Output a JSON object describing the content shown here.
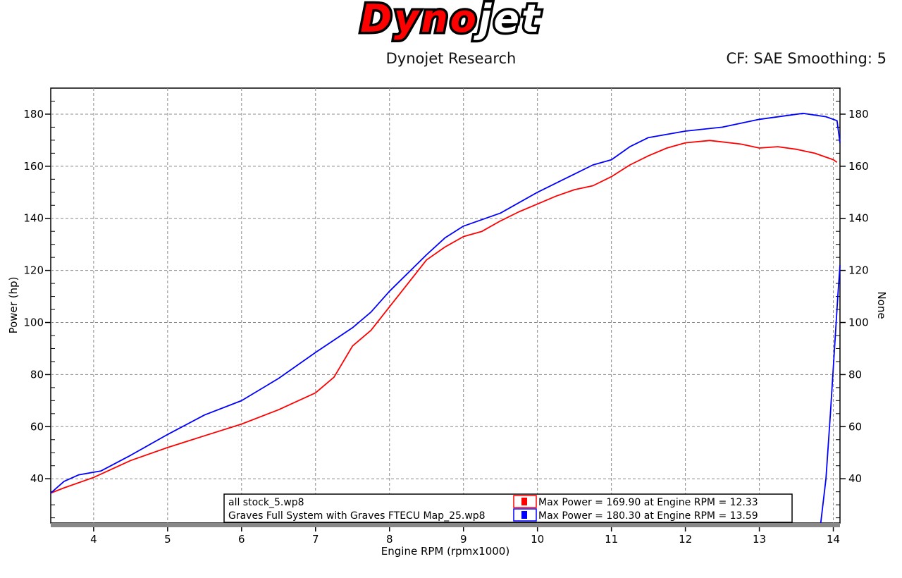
{
  "header": {
    "logo_text": "Dynojet",
    "title": "Dynojet Research",
    "correction": "CF: SAE Smoothing: 5"
  },
  "chart_data": {
    "type": "line",
    "xlabel": "Engine RPM (rpmx1000)",
    "ylabel": "Power (hp)",
    "y2label": "None",
    "xlim": [
      3.42,
      14.09
    ],
    "ylim": [
      23,
      190
    ],
    "xticks": [
      4,
      5,
      6,
      7,
      8,
      9,
      10,
      11,
      12,
      13,
      14
    ],
    "yticks": [
      40,
      60,
      80,
      100,
      120,
      140,
      160,
      180
    ],
    "grid": true,
    "legend_placement": "bottom",
    "series": [
      {
        "name": "all stock_5.wp8",
        "color": "#ff0000",
        "legend_text": "Max Power = 169.90 at Engine RPM = 12.33",
        "x": [
          3.42,
          3.6,
          4.0,
          4.5,
          5.0,
          5.5,
          6.0,
          6.5,
          7.0,
          7.25,
          7.5,
          7.75,
          8.0,
          8.25,
          8.5,
          8.75,
          9.0,
          9.25,
          9.5,
          9.75,
          10.0,
          10.25,
          10.5,
          10.75,
          11.0,
          11.25,
          11.5,
          11.75,
          12.0,
          12.33,
          12.75,
          13.0,
          13.25,
          13.5,
          13.75,
          14.0,
          14.05
        ],
        "y": [
          34.5,
          36.5,
          40.5,
          47,
          52,
          56.5,
          61,
          66.5,
          73,
          79,
          91,
          97,
          106,
          115,
          124,
          129,
          133,
          135,
          139,
          142.5,
          145.5,
          148.5,
          151,
          152.5,
          156,
          160.5,
          164,
          167,
          169,
          169.9,
          168.5,
          167,
          167.5,
          166.5,
          165,
          162.5,
          161.5
        ]
      },
      {
        "name": "Graves Full System with Graves FTECU Map_25.wp8",
        "color": "#0000ff",
        "legend_text": "Max Power = 180.30 at Engine RPM = 13.59",
        "x": [
          3.42,
          3.6,
          3.8,
          4.1,
          4.5,
          5.0,
          5.5,
          6.0,
          6.5,
          7.0,
          7.5,
          7.75,
          8.0,
          8.5,
          8.75,
          9.0,
          9.5,
          10.0,
          10.5,
          10.75,
          11.0,
          11.25,
          11.5,
          12.0,
          12.5,
          13.0,
          13.59,
          13.9,
          14.05,
          14.09
        ],
        "y": [
          34.5,
          39,
          41.5,
          43,
          49,
          57,
          64.5,
          70,
          78.5,
          88.5,
          98,
          104,
          112,
          126,
          132.5,
          137,
          142,
          150,
          157,
          160.5,
          162.5,
          167.5,
          171,
          173.5,
          175,
          178,
          180.3,
          179,
          177.5,
          169
        ]
      },
      {
        "color": "#0000ff",
        "axis": "right",
        "x": [
          13.83,
          13.9,
          13.96,
          14.02,
          14.06,
          14.09
        ],
        "y": [
          23,
          40,
          65,
          92,
          110,
          122
        ]
      }
    ]
  }
}
